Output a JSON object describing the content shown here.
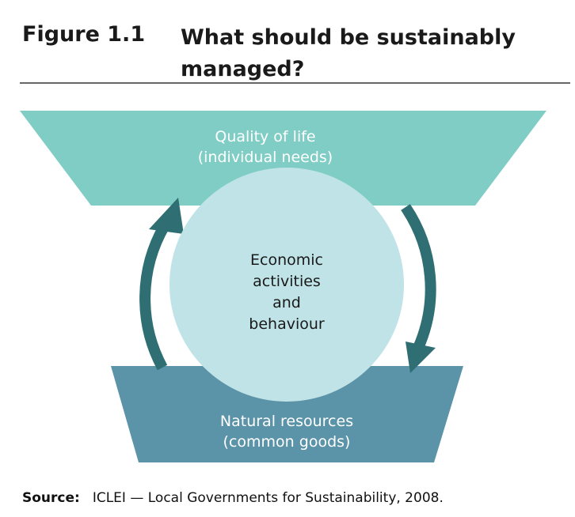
{
  "figure": {
    "label": "Figure 1.1",
    "title": "What should be sustainably managed?"
  },
  "nodes": [
    {
      "lines": [
        "Quality of life",
        "(individual needs)"
      ]
    },
    {
      "lines": [
        "Economic",
        "activities",
        "and",
        "behaviour"
      ]
    },
    {
      "lines": [
        "Natural resources",
        "(common goods)"
      ]
    }
  ],
  "source": {
    "label": "Source:",
    "text": "ICLEI — Local Governments for Sustainability, 2008."
  }
}
